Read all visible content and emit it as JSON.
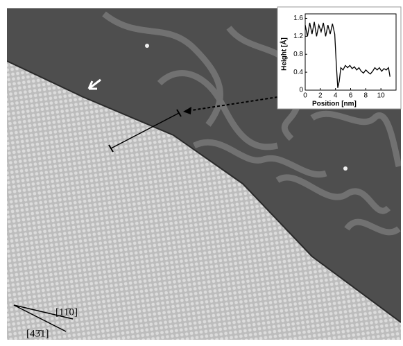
{
  "chart_data": {
    "type": "line",
    "xlabel": "Position [nm]",
    "ylabel": "Height [Å]",
    "x": [
      0,
      0.3,
      0.6,
      0.9,
      1.2,
      1.5,
      1.8,
      2.1,
      2.4,
      2.7,
      3.0,
      3.3,
      3.6,
      3.9,
      4.1,
      4.3,
      4.5,
      4.7,
      5.0,
      5.3,
      5.6,
      5.9,
      6.2,
      6.5,
      6.8,
      7.1,
      7.4,
      7.7,
      8.0,
      8.3,
      8.6,
      8.9,
      9.2,
      9.5,
      9.8,
      10.1,
      10.4,
      10.7,
      11.0,
      11.2
    ],
    "series": [
      {
        "color": "#000000",
        "values": [
          1.45,
          1.2,
          1.5,
          1.25,
          1.52,
          1.2,
          1.45,
          1.3,
          1.5,
          1.2,
          1.45,
          1.25,
          1.48,
          1.25,
          0.6,
          0.05,
          0.2,
          0.5,
          0.45,
          0.55,
          0.5,
          0.55,
          0.48,
          0.52,
          0.45,
          0.5,
          0.42,
          0.38,
          0.45,
          0.4,
          0.36,
          0.42,
          0.5,
          0.45,
          0.5,
          0.42,
          0.48,
          0.45,
          0.5,
          0.3
        ]
      }
    ],
    "xlim": [
      0,
      12
    ],
    "ylim": [
      0,
      1.7
    ],
    "xticks": [
      0,
      2,
      4,
      6,
      8,
      10
    ],
    "yticks": [
      0,
      0.4,
      0.8,
      1.2,
      1.6
    ]
  },
  "annotations": [
    "[11̄0]",
    "[43̄1]"
  ]
}
